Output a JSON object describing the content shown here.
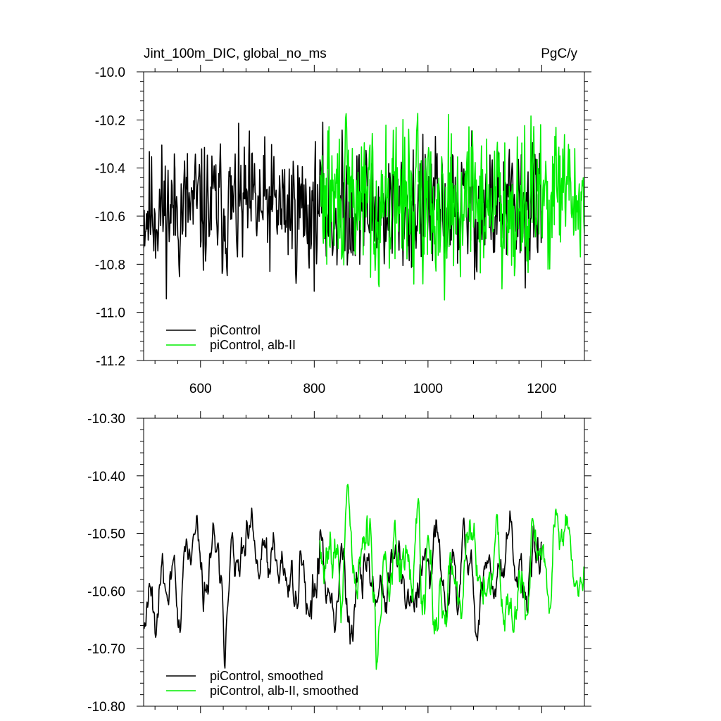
{
  "figure": {
    "title_left": "Jint_100m_DIC, global_no_ms",
    "title_right": "PgC/y"
  },
  "chart_data": [
    {
      "type": "line",
      "xlim": [
        500,
        1275
      ],
      "ylim": [
        -11.2,
        -10.0
      ],
      "xticks": [
        600,
        800,
        1000,
        1200
      ],
      "xtick_labels": [
        "600",
        "800",
        "1000",
        "1200"
      ],
      "yticks": [
        -10.0,
        -10.2,
        -10.4,
        -10.6,
        -10.8,
        -11.0,
        -11.2
      ],
      "ytick_labels": [
        "-10.0",
        "-10.2",
        "-10.4",
        "-10.6",
        "-10.8",
        "-11.0",
        "-11.2"
      ],
      "grid": false,
      "legend_position": "bottom-left",
      "series": [
        {
          "name": "piControl",
          "color": "#000000",
          "x_range": [
            500,
            1200
          ],
          "mean": -10.57,
          "amp": 0.17,
          "seed": 11
        },
        {
          "name": "piControl, alb-II",
          "color": "#00ee00",
          "x_range": [
            810,
            1275
          ],
          "mean": -10.53,
          "amp": 0.19,
          "seed": 29
        }
      ]
    },
    {
      "type": "line",
      "xlim": [
        500,
        1275
      ],
      "ylim": [
        -10.8,
        -10.3
      ],
      "xticks": [
        600,
        800,
        1000,
        1200
      ],
      "xtick_labels": [],
      "yticks": [
        -10.3,
        -10.4,
        -10.5,
        -10.6,
        -10.7,
        -10.8
      ],
      "ytick_labels": [
        "-10.30",
        "-10.40",
        "-10.50",
        "-10.60",
        "-10.70",
        "-10.80"
      ],
      "grid": false,
      "legend_position": "bottom-left",
      "series": [
        {
          "name": "piControl, smoothed",
          "color": "#000000",
          "x_range": [
            500,
            1200
          ],
          "mean": -10.58,
          "amp": 0.07,
          "seed": 11,
          "smooth": 5
        },
        {
          "name": "piControl, alb-II, smoothed",
          "color": "#00ee00",
          "x_range": [
            810,
            1275
          ],
          "mean": -10.56,
          "amp": 0.08,
          "seed": 29,
          "smooth": 5
        }
      ]
    }
  ]
}
